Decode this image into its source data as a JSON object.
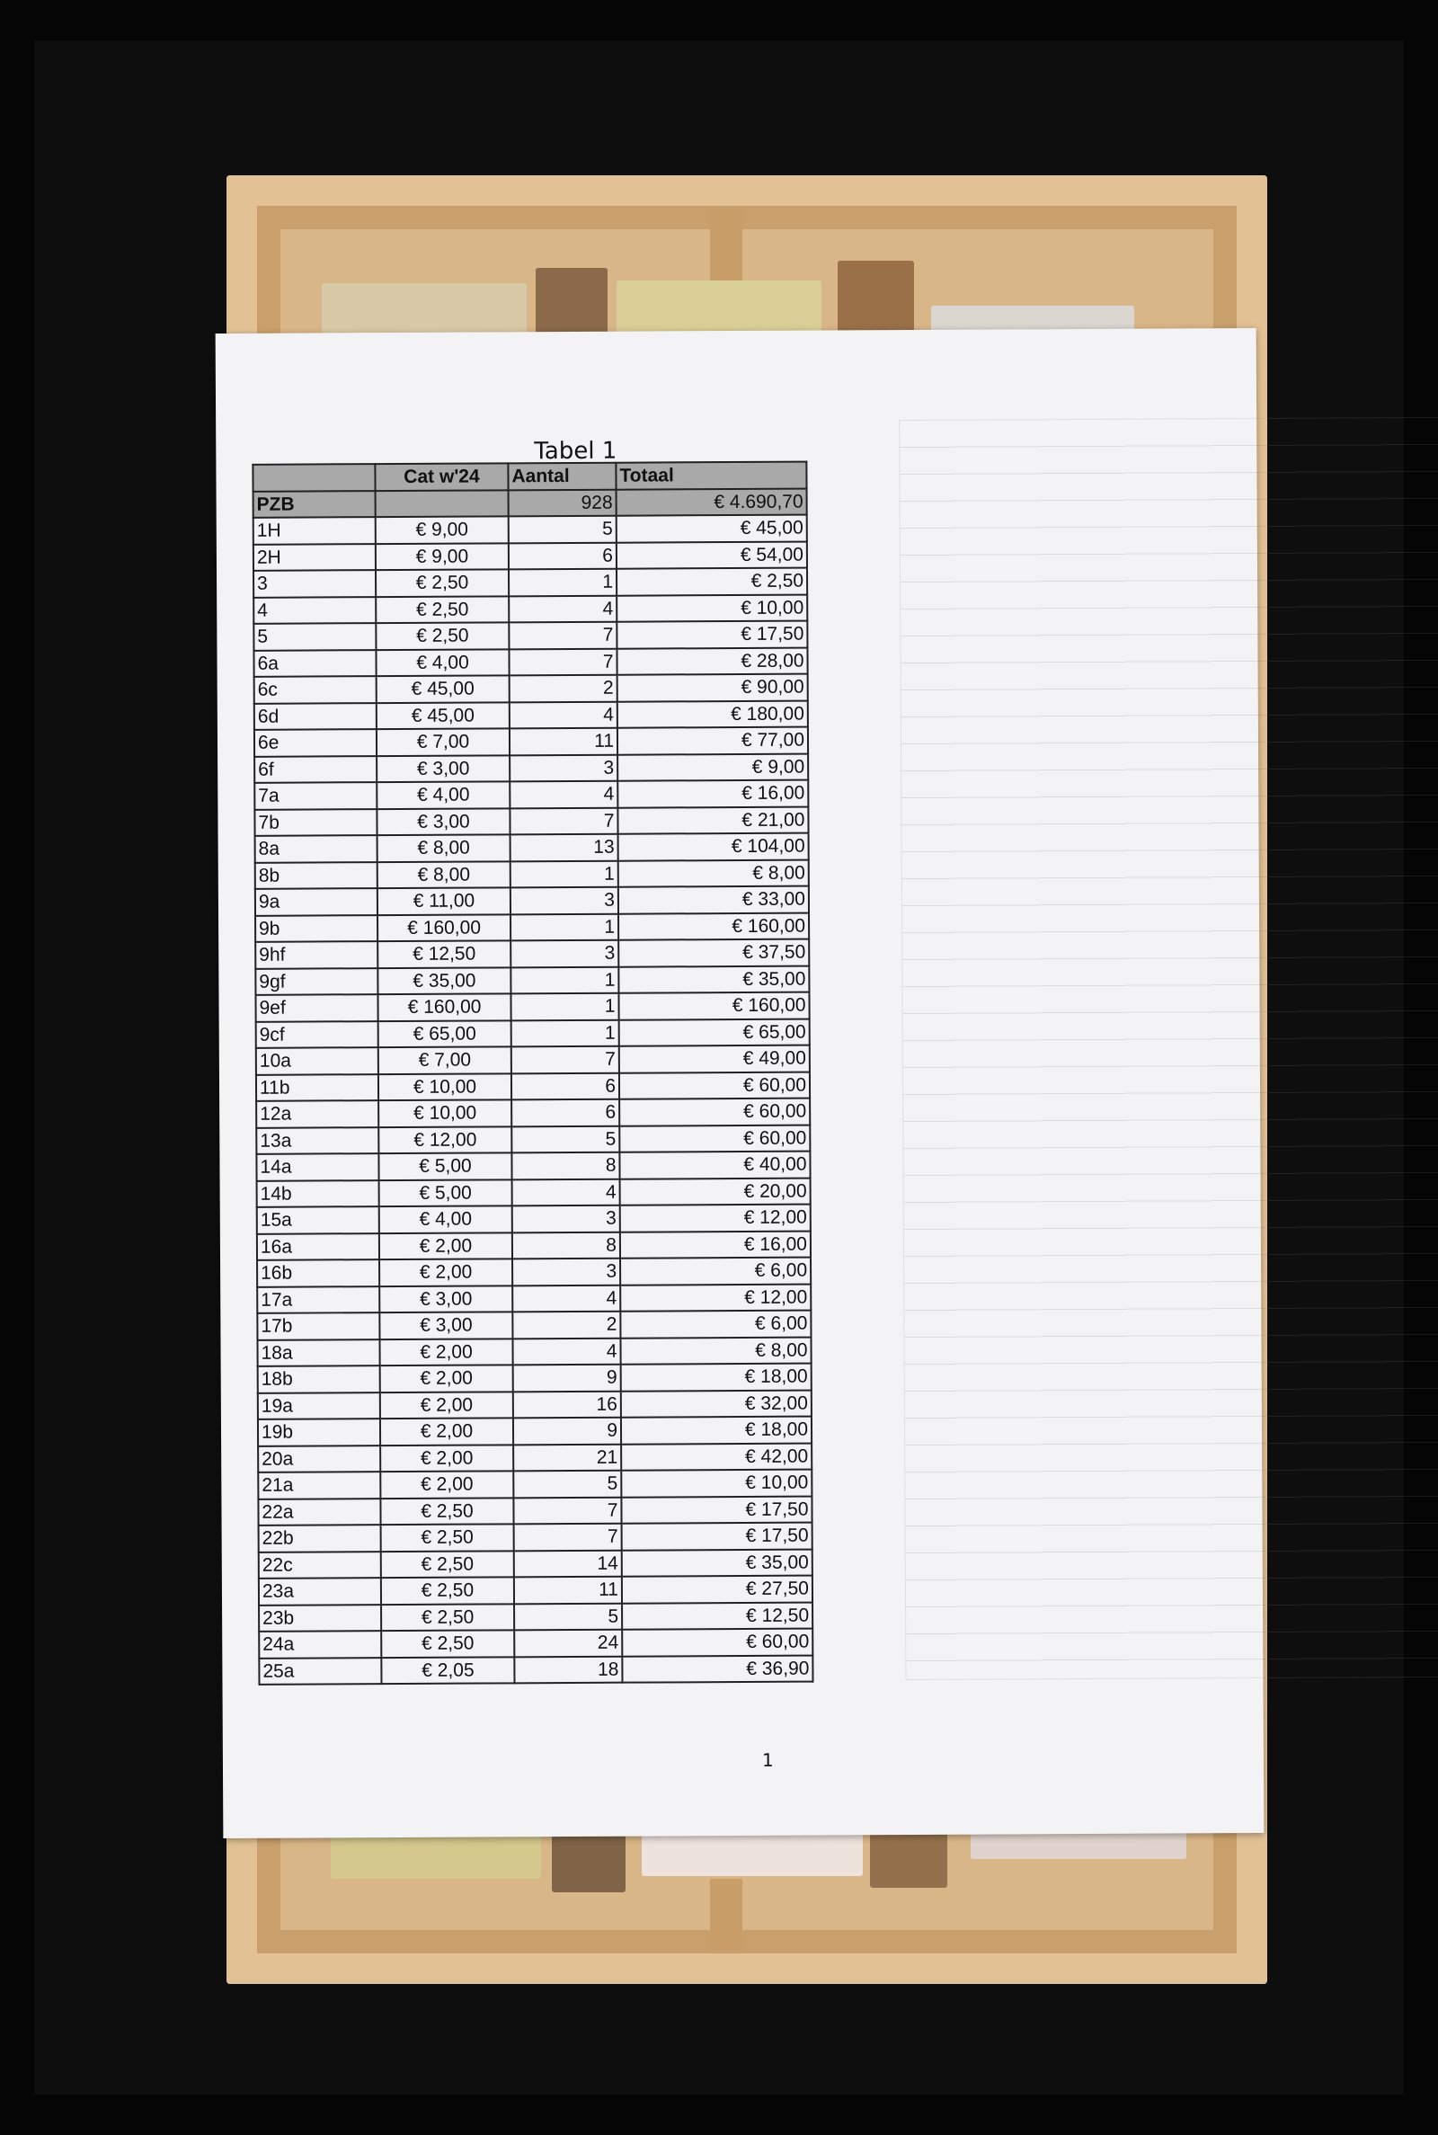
{
  "document": {
    "title": "Tabel 1",
    "page_number": "1",
    "columns": [
      "",
      "Cat w'24",
      "Aantal",
      "Totaal"
    ],
    "summary_row": {
      "label": "PZB",
      "cat": "",
      "aantal": "928",
      "totaal": "€ 4.690,70"
    },
    "rows": [
      [
        "1H",
        "€ 9,00",
        "5",
        "€ 45,00"
      ],
      [
        "2H",
        "€ 9,00",
        "6",
        "€ 54,00"
      ],
      [
        "3",
        "€ 2,50",
        "1",
        "€ 2,50"
      ],
      [
        "4",
        "€ 2,50",
        "4",
        "€ 10,00"
      ],
      [
        "5",
        "€ 2,50",
        "7",
        "€ 17,50"
      ],
      [
        "6a",
        "€ 4,00",
        "7",
        "€ 28,00"
      ],
      [
        "6c",
        "€ 45,00",
        "2",
        "€ 90,00"
      ],
      [
        "6d",
        "€ 45,00",
        "4",
        "€ 180,00"
      ],
      [
        "6e",
        "€ 7,00",
        "11",
        "€ 77,00"
      ],
      [
        "6f",
        "€ 3,00",
        "3",
        "€ 9,00"
      ],
      [
        "7a",
        "€ 4,00",
        "4",
        "€ 16,00"
      ],
      [
        "7b",
        "€ 3,00",
        "7",
        "€ 21,00"
      ],
      [
        "8a",
        "€ 8,00",
        "13",
        "€ 104,00"
      ],
      [
        "8b",
        "€ 8,00",
        "1",
        "€ 8,00"
      ],
      [
        "9a",
        "€ 11,00",
        "3",
        "€ 33,00"
      ],
      [
        "9b",
        "€ 160,00",
        "1",
        "€ 160,00"
      ],
      [
        "9hf",
        "€ 12,50",
        "3",
        "€ 37,50"
      ],
      [
        "9gf",
        "€ 35,00",
        "1",
        "€ 35,00"
      ],
      [
        "9ef",
        "€ 160,00",
        "1",
        "€ 160,00"
      ],
      [
        "9cf",
        "€ 65,00",
        "1",
        "€ 65,00"
      ],
      [
        "10a",
        "€ 7,00",
        "7",
        "€ 49,00"
      ],
      [
        "11b",
        "€ 10,00",
        "6",
        "€ 60,00"
      ],
      [
        "12a",
        "€ 10,00",
        "6",
        "€ 60,00"
      ],
      [
        "13a",
        "€ 12,00",
        "5",
        "€ 60,00"
      ],
      [
        "14a",
        "€ 5,00",
        "8",
        "€ 40,00"
      ],
      [
        "14b",
        "€ 5,00",
        "4",
        "€ 20,00"
      ],
      [
        "15a",
        "€ 4,00",
        "3",
        "€ 12,00"
      ],
      [
        "16a",
        "€ 2,00",
        "8",
        "€ 16,00"
      ],
      [
        "16b",
        "€ 2,00",
        "3",
        "€ 6,00"
      ],
      [
        "17a",
        "€ 3,00",
        "4",
        "€ 12,00"
      ],
      [
        "17b",
        "€ 3,00",
        "2",
        "€ 6,00"
      ],
      [
        "18a",
        "€ 2,00",
        "4",
        "€ 8,00"
      ],
      [
        "18b",
        "€ 2,00",
        "9",
        "€ 18,00"
      ],
      [
        "19a",
        "€ 2,00",
        "16",
        "€ 32,00"
      ],
      [
        "19b",
        "€ 2,00",
        "9",
        "€ 18,00"
      ],
      [
        "20a",
        "€ 2,00",
        "21",
        "€ 42,00"
      ],
      [
        "21a",
        "€ 2,00",
        "5",
        "€ 10,00"
      ],
      [
        "22a",
        "€ 2,50",
        "7",
        "€ 17,50"
      ],
      [
        "22b",
        "€ 2,50",
        "7",
        "€ 17,50"
      ],
      [
        "22c",
        "€ 2,50",
        "14",
        "€ 35,00"
      ],
      [
        "23a",
        "€ 2,50",
        "11",
        "€ 27,50"
      ],
      [
        "23b",
        "€ 2,50",
        "5",
        "€ 12,50"
      ],
      [
        "24a",
        "€ 2,50",
        "24",
        "€ 60,00"
      ],
      [
        "25a",
        "€ 2,05",
        "18",
        "€ 36,90"
      ]
    ]
  },
  "colors": {
    "background": "#050505",
    "wood": "#d9b687",
    "paper": "#f3f3f5",
    "header_fill": "#a9a9a9"
  }
}
